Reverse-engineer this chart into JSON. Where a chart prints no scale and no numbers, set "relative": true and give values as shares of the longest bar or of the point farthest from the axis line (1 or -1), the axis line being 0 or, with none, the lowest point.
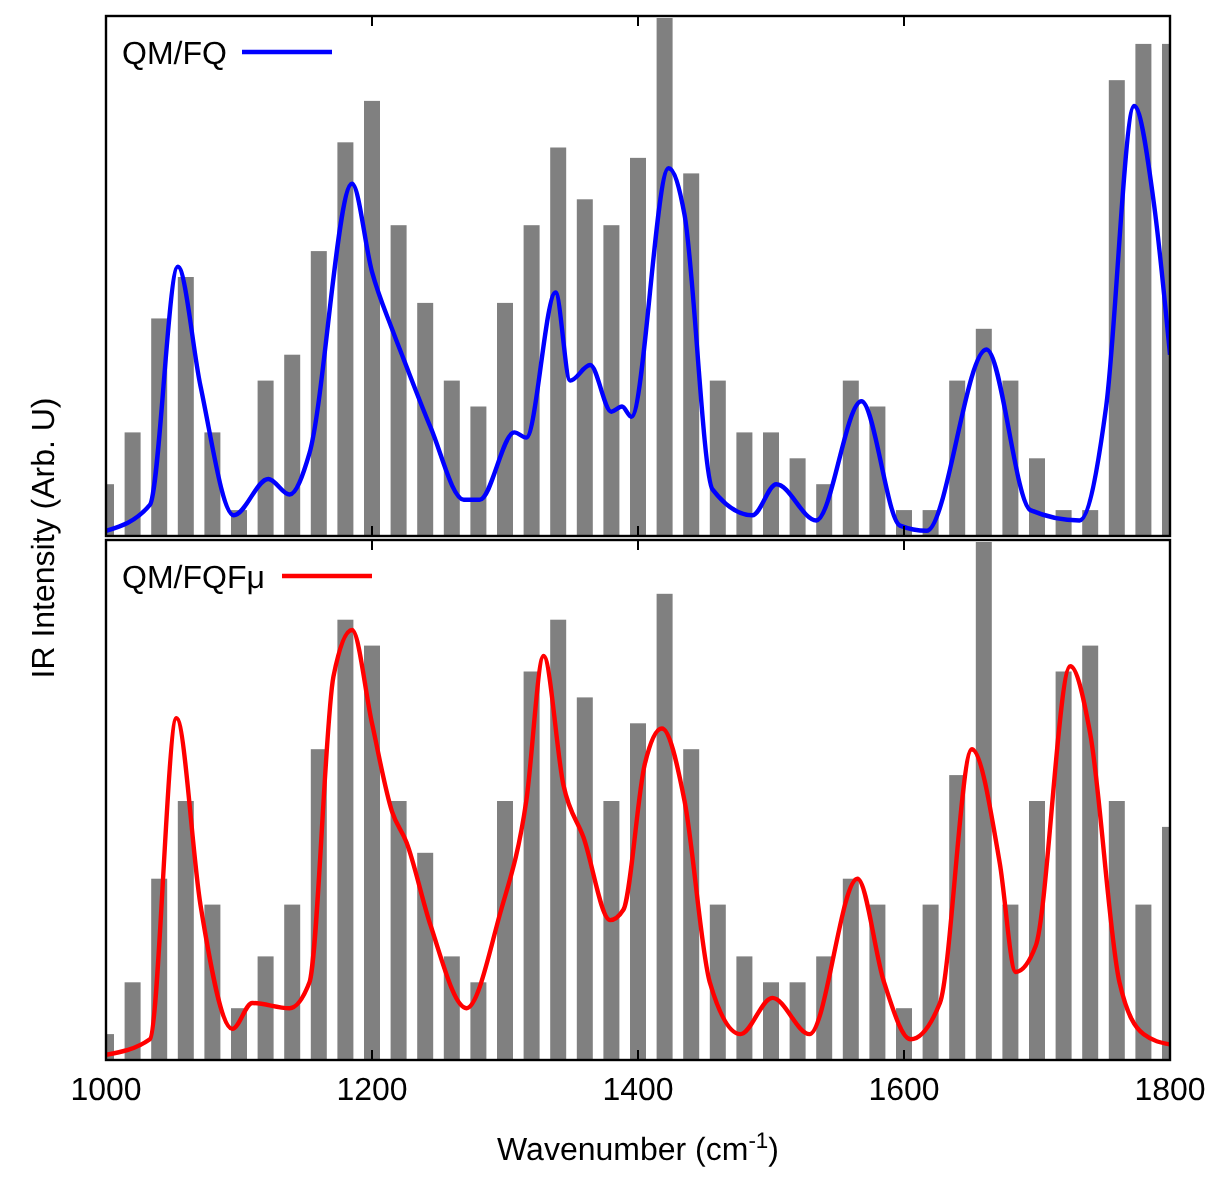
{
  "chart_data": [
    {
      "type": "line",
      "relative": true,
      "ylabel": "IR Intensity (Arb. U)",
      "xlim": [
        1000,
        1800
      ],
      "xticks": [
        1000,
        1200,
        1400,
        1600,
        1800
      ],
      "tick_labels": false,
      "legend": "top left",
      "series": [
        {
          "type": "bar",
          "color": "#808080",
          "x": [
            1000,
            1020,
            1040,
            1060,
            1080,
            1100,
            1120,
            1140,
            1160,
            1180,
            1200,
            1220,
            1240,
            1260,
            1280,
            1300,
            1320,
            1340,
            1360,
            1380,
            1400,
            1420,
            1440,
            1460,
            1480,
            1500,
            1520,
            1540,
            1560,
            1580,
            1600,
            1620,
            1640,
            1660,
            1680,
            1700,
            1720,
            1740,
            1760,
            1780,
            1800
          ],
          "values": [
            0.1,
            0.2,
            0.42,
            0.5,
            0.2,
            0.05,
            0.3,
            0.35,
            0.55,
            0.76,
            0.84,
            0.6,
            0.45,
            0.3,
            0.25,
            0.45,
            0.6,
            0.75,
            0.65,
            0.6,
            0.73,
            1,
            0.7,
            0.3,
            0.2,
            0.2,
            0.15,
            0.1,
            0.3,
            0.25,
            0.05,
            0.05,
            0.3,
            0.4,
            0.3,
            0.15,
            0.05,
            0.05,
            0.88,
            0.95,
            0.95
          ]
        },
        {
          "type": "line",
          "name": "QM/FQ",
          "color": "#0000ff",
          "x": [
            1000,
            1033,
            1054,
            1071,
            1096,
            1122,
            1138,
            1153,
            1185,
            1200,
            1215,
            1224,
            1244,
            1269,
            1281,
            1307,
            1316,
            1338,
            1349,
            1364,
            1380,
            1388,
            1395,
            1423,
            1435,
            1456,
            1486,
            1504,
            1534,
            1568,
            1597,
            1617,
            1662,
            1695,
            1732,
            1752,
            1773,
            1788,
            1800
          ],
          "values": [
            0.01,
            0.06,
            0.52,
            0.29,
            0.04,
            0.11,
            0.08,
            0.16,
            0.68,
            0.51,
            0.4,
            0.34,
            0.21,
            0.07,
            0.07,
            0.2,
            0.19,
            0.47,
            0.3,
            0.33,
            0.24,
            0.25,
            0.23,
            0.71,
            0.62,
            0.09,
            0.04,
            0.1,
            0.03,
            0.26,
            0.02,
            0.01,
            0.36,
            0.05,
            0.03,
            0.25,
            0.83,
            0.64,
            0.35
          ]
        }
      ]
    },
    {
      "type": "line",
      "relative": true,
      "xlabel": "Wavenumber (cm$^{-1}$)",
      "xlim": [
        1000,
        1800
      ],
      "xticks": [
        1000,
        1200,
        1400,
        1600,
        1800
      ],
      "tick_labels": "x",
      "legend": "top left",
      "series": [
        {
          "type": "bar",
          "color": "#808080",
          "x": [
            1000,
            1020,
            1040,
            1060,
            1080,
            1100,
            1120,
            1140,
            1160,
            1180,
            1200,
            1220,
            1240,
            1260,
            1280,
            1300,
            1320,
            1340,
            1360,
            1380,
            1400,
            1420,
            1440,
            1460,
            1480,
            1500,
            1520,
            1540,
            1560,
            1580,
            1600,
            1620,
            1640,
            1660,
            1680,
            1700,
            1720,
            1740,
            1760,
            1780,
            1800
          ],
          "values": [
            0.05,
            0.15,
            0.35,
            0.5,
            0.3,
            0.1,
            0.2,
            0.3,
            0.6,
            0.85,
            0.8,
            0.5,
            0.4,
            0.2,
            0.15,
            0.5,
            0.75,
            0.85,
            0.7,
            0.5,
            0.65,
            0.9,
            0.6,
            0.3,
            0.2,
            0.15,
            0.15,
            0.2,
            0.35,
            0.3,
            0.1,
            0.3,
            0.55,
            1,
            0.3,
            0.5,
            0.75,
            0.8,
            0.5,
            0.3,
            0.45
          ]
        },
        {
          "type": "line",
          "name": "QM/FQFμ",
          "color": "#ff0000",
          "x": [
            1000,
            1033,
            1053,
            1071,
            1095,
            1110,
            1138,
            1153,
            1171,
            1185,
            1200,
            1215,
            1226,
            1244,
            1271,
            1296,
            1316,
            1329,
            1344,
            1359,
            1379,
            1389,
            1405,
            1418,
            1435,
            1454,
            1477,
            1501,
            1529,
            1565,
            1585,
            1605,
            1627,
            1651,
            1672,
            1684,
            1699,
            1725,
            1740,
            1762,
            1780,
            1800
          ],
          "values": [
            0.01,
            0.04,
            0.66,
            0.3,
            0.06,
            0.11,
            0.1,
            0.15,
            0.74,
            0.83,
            0.65,
            0.48,
            0.42,
            0.26,
            0.1,
            0.28,
            0.5,
            0.78,
            0.53,
            0.43,
            0.27,
            0.29,
            0.57,
            0.64,
            0.5,
            0.15,
            0.05,
            0.12,
            0.05,
            0.35,
            0.15,
            0.04,
            0.11,
            0.6,
            0.38,
            0.17,
            0.22,
            0.76,
            0.63,
            0.15,
            0.05,
            0.03
          ]
        }
      ]
    }
  ]
}
